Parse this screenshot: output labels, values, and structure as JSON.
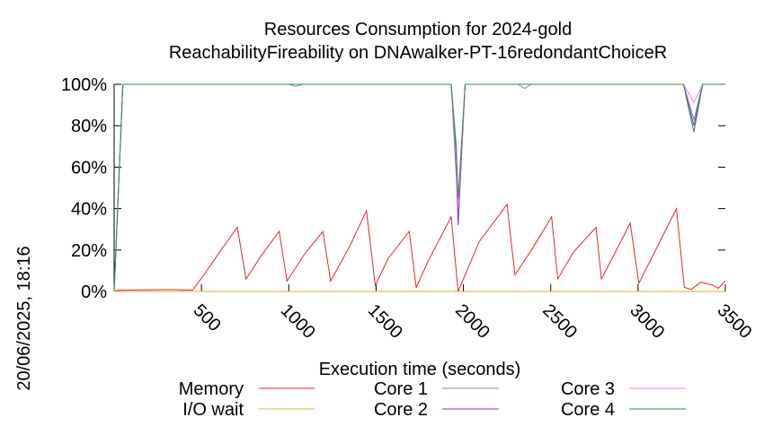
{
  "side_label": "20/06/2025, 18:16",
  "chart_data": {
    "type": "line",
    "title": "Resources Consumption for 2024-gold",
    "subtitle": "ReachabilityFireability on DNAwalker-PT-16redondantChoiceR",
    "xlabel": "Execution time (seconds)",
    "ylabel": "",
    "xlim": [
      0,
      3500
    ],
    "ylim": [
      0,
      100
    ],
    "x_ticks": [
      500,
      1000,
      1500,
      2000,
      2500,
      3000,
      3500
    ],
    "y_ticks": [
      0,
      20,
      40,
      60,
      80,
      100
    ],
    "x_tick_labels": [
      "500",
      "1000",
      "1500",
      "2000",
      "2500",
      "3000",
      "3500"
    ],
    "y_tick_labels": [
      "0%",
      "20%",
      "40%",
      "60%",
      "80%",
      "100%"
    ],
    "grid": false,
    "legend_position": "bottom",
    "series": [
      {
        "name": "Memory",
        "color": "#e8252b",
        "points": [
          [
            0,
            0
          ],
          [
            20,
            0.5
          ],
          [
            100,
            0.7
          ],
          [
            200,
            0.8
          ],
          [
            300,
            0.9
          ],
          [
            400,
            0.7
          ],
          [
            450,
            0.7
          ],
          [
            530,
            10
          ],
          [
            620,
            21
          ],
          [
            705,
            31
          ],
          [
            755,
            6
          ],
          [
            840,
            17
          ],
          [
            945,
            29
          ],
          [
            990,
            5
          ],
          [
            1090,
            18
          ],
          [
            1195,
            29
          ],
          [
            1240,
            5
          ],
          [
            1350,
            22
          ],
          [
            1445,
            39
          ],
          [
            1495,
            3
          ],
          [
            1570,
            16
          ],
          [
            1690,
            29
          ],
          [
            1730,
            2
          ],
          [
            1800,
            15
          ],
          [
            1930,
            36
          ],
          [
            1970,
            0
          ],
          [
            2090,
            24
          ],
          [
            2250,
            42
          ],
          [
            2295,
            8
          ],
          [
            2390,
            20
          ],
          [
            2505,
            36
          ],
          [
            2540,
            6
          ],
          [
            2630,
            19
          ],
          [
            2760,
            31
          ],
          [
            2790,
            6
          ],
          [
            2870,
            19
          ],
          [
            2955,
            33
          ],
          [
            3005,
            4
          ],
          [
            3095,
            19
          ],
          [
            3220,
            40
          ],
          [
            3265,
            2
          ],
          [
            3305,
            1
          ],
          [
            3360,
            4.5
          ],
          [
            3430,
            3
          ],
          [
            3460,
            1.5
          ],
          [
            3500,
            5
          ]
        ]
      },
      {
        "name": "I/O wait",
        "color": "#f5a623",
        "points": [
          [
            0,
            0
          ],
          [
            3500,
            0
          ]
        ]
      },
      {
        "name": "Core 1",
        "color": "#6b8fd6",
        "points": [
          [
            0,
            0
          ],
          [
            50,
            100
          ],
          [
            1000,
            100
          ],
          [
            1040,
            99
          ],
          [
            1080,
            100
          ],
          [
            1930,
            100
          ],
          [
            1960,
            70
          ],
          [
            1970,
            38
          ],
          [
            2010,
            100
          ],
          [
            2310,
            100
          ],
          [
            2350,
            98
          ],
          [
            2390,
            100
          ],
          [
            3260,
            100
          ],
          [
            3320,
            83
          ],
          [
            3370,
            100
          ],
          [
            3500,
            100
          ]
        ]
      },
      {
        "name": "Core 2",
        "color": "#8a2be2",
        "points": [
          [
            0,
            0
          ],
          [
            50,
            100
          ],
          [
            1930,
            100
          ],
          [
            1960,
            55
          ],
          [
            1970,
            32
          ],
          [
            2010,
            100
          ],
          [
            3260,
            100
          ],
          [
            3320,
            80
          ],
          [
            3370,
            100
          ],
          [
            3500,
            100
          ]
        ]
      },
      {
        "name": "Core 3",
        "color": "#ee82ee",
        "points": [
          [
            0,
            0
          ],
          [
            50,
            100
          ],
          [
            1930,
            100
          ],
          [
            1960,
            60
          ],
          [
            1970,
            40
          ],
          [
            2010,
            100
          ],
          [
            3260,
            100
          ],
          [
            3320,
            91
          ],
          [
            3370,
            100
          ],
          [
            3500,
            100
          ]
        ]
      },
      {
        "name": "Core 4",
        "color": "#2e8b3e",
        "points": [
          [
            0,
            0
          ],
          [
            50,
            100
          ],
          [
            1930,
            100
          ],
          [
            1960,
            65
          ],
          [
            1970,
            45
          ],
          [
            2010,
            100
          ],
          [
            3260,
            100
          ],
          [
            3320,
            77
          ],
          [
            3370,
            100
          ],
          [
            3500,
            100
          ]
        ]
      }
    ]
  }
}
